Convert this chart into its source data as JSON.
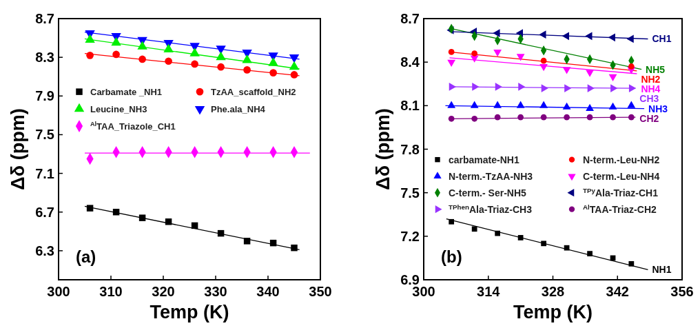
{
  "chart_data": [
    {
      "type": "scatter",
      "xlabel": "Temp (K)",
      "ylabel": "Δδ (ppm)",
      "xlim": [
        300,
        350
      ],
      "xticks": [
        300,
        310,
        320,
        330,
        340,
        350
      ],
      "ylim": [
        6.0,
        8.7
      ],
      "yticks": [
        6.3,
        6.7,
        7.1,
        7.5,
        7.9,
        8.3,
        8.7
      ],
      "grid": false,
      "legend": "center",
      "annotations": [
        "(a)"
      ],
      "x": [
        306,
        311,
        316,
        321,
        326,
        331,
        336,
        341,
        345
      ],
      "series": [
        {
          "name": "Carbamate _NH1",
          "color": "#000000",
          "marker": "square",
          "values": [
            6.74,
            6.7,
            6.64,
            6.6,
            6.56,
            6.48,
            6.4,
            6.38,
            6.33
          ]
        },
        {
          "name": "TzAA_scaffold_NH2",
          "color": "#ff0000",
          "marker": "circle",
          "values": [
            8.32,
            8.33,
            8.28,
            8.26,
            8.23,
            8.2,
            8.17,
            8.14,
            8.12
          ]
        },
        {
          "name": "Leucine_NH3",
          "color": "#00ee00",
          "marker": "triangle",
          "values": [
            8.48,
            8.45,
            8.41,
            8.38,
            8.34,
            8.3,
            8.27,
            8.24,
            8.2
          ]
        },
        {
          "name": "Phe.ala_NH4",
          "color": "#0000ff",
          "marker": "triangle-down",
          "values": [
            8.55,
            8.52,
            8.48,
            8.45,
            8.42,
            8.39,
            8.35,
            8.32,
            8.3
          ]
        },
        {
          "name": "$^{Al}$TAA_Triazole_CH1",
          "color": "#ff00ff",
          "marker": "diamond",
          "values": [
            7.25,
            7.32,
            7.32,
            7.32,
            7.32,
            7.32,
            7.32,
            7.32,
            7.32
          ]
        },
        {
          "type": "line",
          "color": "#000000",
          "x": [
            305,
            346
          ],
          "values": [
            6.76,
            6.31
          ]
        },
        {
          "type": "line",
          "color": "#ff0000",
          "x": [
            305,
            346
          ],
          "values": [
            8.34,
            8.11
          ]
        },
        {
          "type": "line",
          "color": "#00ee00",
          "x": [
            305,
            346
          ],
          "values": [
            8.49,
            8.18
          ]
        },
        {
          "type": "line",
          "color": "#0000ff",
          "x": [
            305,
            346
          ],
          "values": [
            8.56,
            8.28
          ]
        },
        {
          "type": "line",
          "color": "#ff00ff",
          "x": [
            305,
            348
          ],
          "values": [
            7.31,
            7.31
          ]
        }
      ]
    },
    {
      "type": "scatter",
      "xlabel": "Temp (K)",
      "ylabel": "Δδ (ppm)",
      "xlim": [
        300,
        356
      ],
      "xticks": [
        300,
        314,
        328,
        342,
        356
      ],
      "ylim": [
        6.9,
        8.7
      ],
      "yticks": [
        6.9,
        7.2,
        7.5,
        7.8,
        8.1,
        8.4,
        8.7
      ],
      "grid": false,
      "legend": "bottom",
      "annotations": [
        "(b)"
      ],
      "x": [
        306,
        311,
        316,
        321,
        326,
        331,
        336,
        341,
        345
      ],
      "series": [
        {
          "name": "carbamate-NH1",
          "color": "#000000",
          "marker": "square",
          "values": [
            7.3,
            7.25,
            7.22,
            7.19,
            7.15,
            7.12,
            7.08,
            7.05,
            7.01
          ]
        },
        {
          "name": "N-term.-Leu-NH2",
          "color": "#ff0000",
          "marker": "circle",
          "values": [
            8.47,
            8.46,
            null,
            null,
            8.41,
            null,
            null,
            null,
            8.37
          ]
        },
        {
          "name": "N-term.-TzAA-NH3",
          "color": "#0000ff",
          "marker": "triangle",
          "values": [
            8.1,
            8.1,
            8.1,
            8.1,
            8.1,
            8.09,
            8.08,
            8.09,
            8.1
          ]
        },
        {
          "name": "C-term.-Leu-NH4",
          "color": "#ff00ff",
          "marker": "triangle-down",
          "values": [
            8.4,
            8.43,
            8.47,
            8.44,
            8.37,
            8.35,
            8.33,
            8.3,
            8.35
          ]
        },
        {
          "name": "C-term.- Ser-NH5",
          "color": "#008000",
          "marker": "diamond",
          "values": [
            8.63,
            8.58,
            8.55,
            8.56,
            8.48,
            8.42,
            8.42,
            8.38,
            8.41
          ]
        },
        {
          "name": "$^{TPy}$Ala-Triaz-CH1",
          "color": "#000080",
          "marker": "triangle-left",
          "values": [
            8.62,
            8.61,
            8.6,
            8.6,
            8.59,
            8.58,
            8.58,
            8.57,
            8.56
          ]
        },
        {
          "name": "$^{TPhen}$Ala-Triaz-CH3",
          "color": "#9933ff",
          "marker": "triangle-right",
          "values": [
            8.23,
            8.23,
            8.23,
            8.23,
            8.22,
            8.22,
            8.22,
            8.22,
            8.22
          ]
        },
        {
          "name": "$^{Al}$TAA-Triaz-CH2",
          "color": "#800080",
          "marker": "circle",
          "values": [
            8.01,
            8.01,
            8.02,
            8.02,
            8.02,
            8.02,
            8.02,
            8.02,
            8.02
          ]
        },
        {
          "type": "line",
          "name": "CH1",
          "color": "#000080",
          "x": [
            305.6,
            348.6
          ],
          "values": [
            8.61,
            8.56
          ]
        },
        {
          "type": "line",
          "name": "NH5",
          "color": "#008000",
          "x": [
            306,
            347.2
          ],
          "values": [
            8.63,
            8.35
          ]
        },
        {
          "type": "line",
          "name": "NH2",
          "color": "#ff0000",
          "x": [
            305.6,
            346.2
          ],
          "values": [
            8.47,
            8.34
          ]
        },
        {
          "type": "line",
          "name": "NH4",
          "color": "#ff00ff",
          "x": [
            305.6,
            346.2
          ],
          "values": [
            8.43,
            8.32
          ]
        },
        {
          "type": "line",
          "name": "CH3",
          "color": "#9933ff",
          "x": [
            305.6,
            345.9
          ],
          "values": [
            8.23,
            8.22
          ]
        },
        {
          "type": "line",
          "name": "NH3",
          "color": "#0000ff",
          "x": [
            304.7,
            347.8
          ],
          "values": [
            8.1,
            8.08
          ]
        },
        {
          "type": "line",
          "name": "CH2",
          "color": "#800080",
          "x": [
            305.6,
            345.9
          ],
          "values": [
            8.01,
            8.02
          ]
        },
        {
          "type": "line",
          "name": "NH1",
          "color": "#000000",
          "x": [
            304.9,
            348.6
          ],
          "values": [
            7.32,
            6.97
          ]
        }
      ]
    }
  ]
}
